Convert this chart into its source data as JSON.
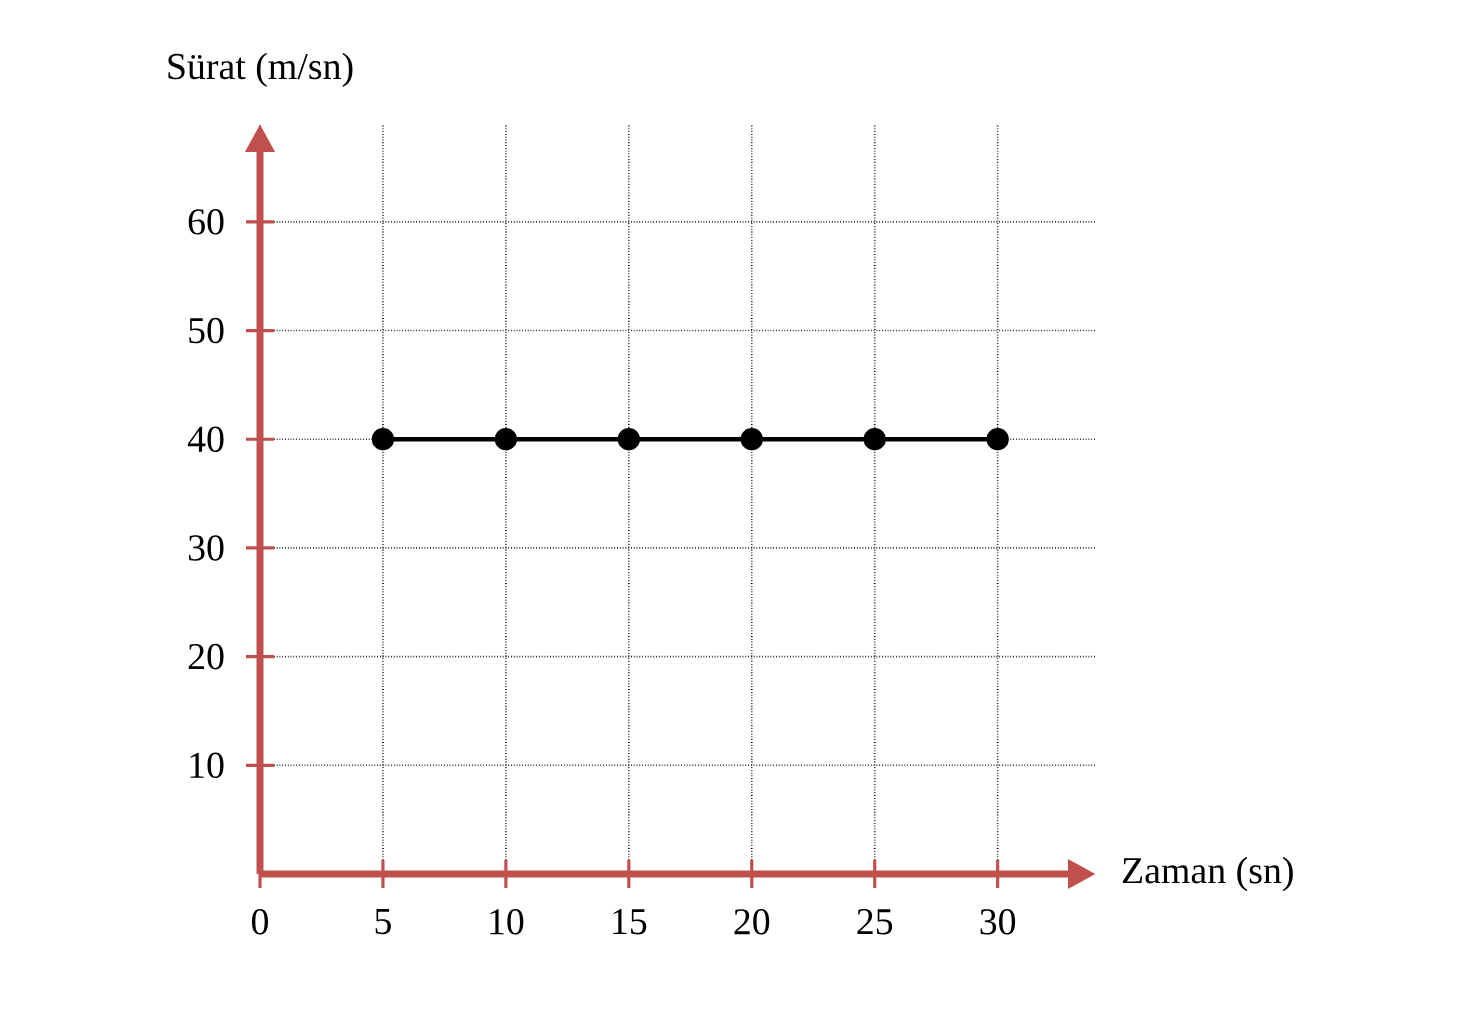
{
  "chart_data": {
    "type": "line",
    "xlabel": "Zaman (sn)",
    "ylabel": "Sürat (m/sn)",
    "x": [
      5,
      10,
      15,
      20,
      25,
      30
    ],
    "series": [
      {
        "color": "#000000",
        "values": [
          40,
          40,
          40,
          40,
          40,
          40
        ]
      }
    ],
    "xlim": [
      0,
      34
    ],
    "ylim": [
      0,
      69
    ],
    "xticks": [
      {
        "value": 0,
        "label": "0"
      },
      5,
      10,
      15,
      20,
      25,
      30
    ],
    "yticks": [
      10,
      20,
      30,
      40,
      50,
      60
    ],
    "grid": true,
    "marker": "circle",
    "line_style": "solid"
  }
}
